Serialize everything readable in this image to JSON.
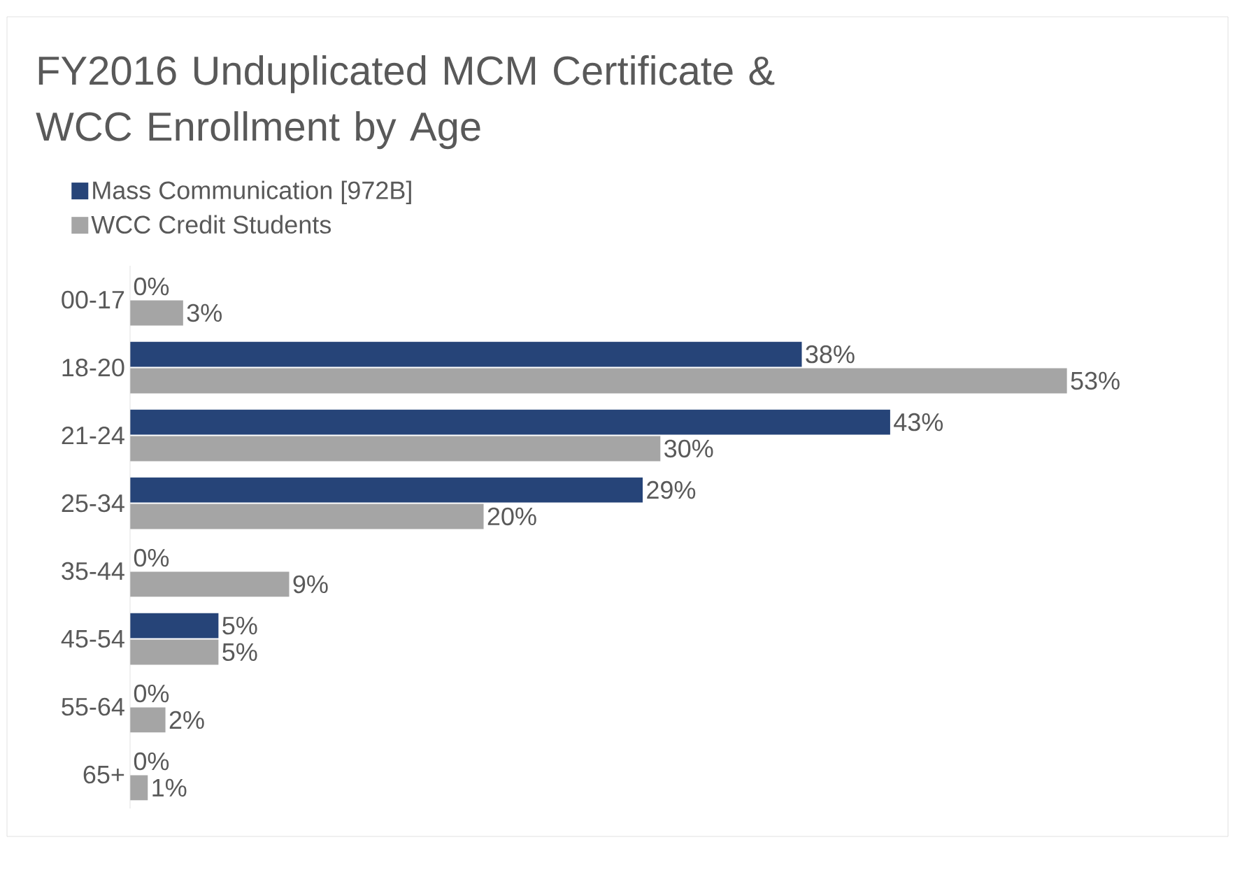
{
  "chart_data": {
    "type": "bar",
    "orientation": "horizontal",
    "title": "FY2016 Unduplicated MCM Certificate & WCC Enrollment by Age",
    "categories": [
      "00-17",
      "18-20",
      "21-24",
      "25-34",
      "35-44",
      "45-54",
      "55-64",
      "65+"
    ],
    "series": [
      {
        "name": "Mass Communication [972B]",
        "color": "#264478",
        "values": [
          0,
          38,
          43,
          29,
          0,
          5,
          0,
          0
        ],
        "value_labels": [
          "0%",
          "38%",
          "43%",
          "29%",
          "0%",
          "5%",
          "0%",
          "0%"
        ]
      },
      {
        "name": "WCC Credit Students",
        "color": "#a5a5a5",
        "values": [
          3,
          53,
          30,
          20,
          9,
          5,
          2,
          1
        ],
        "value_labels": [
          "3%",
          "53%",
          "30%",
          "20%",
          "9%",
          "5%",
          "2%",
          "1%"
        ]
      }
    ],
    "legend": "top left"
  }
}
